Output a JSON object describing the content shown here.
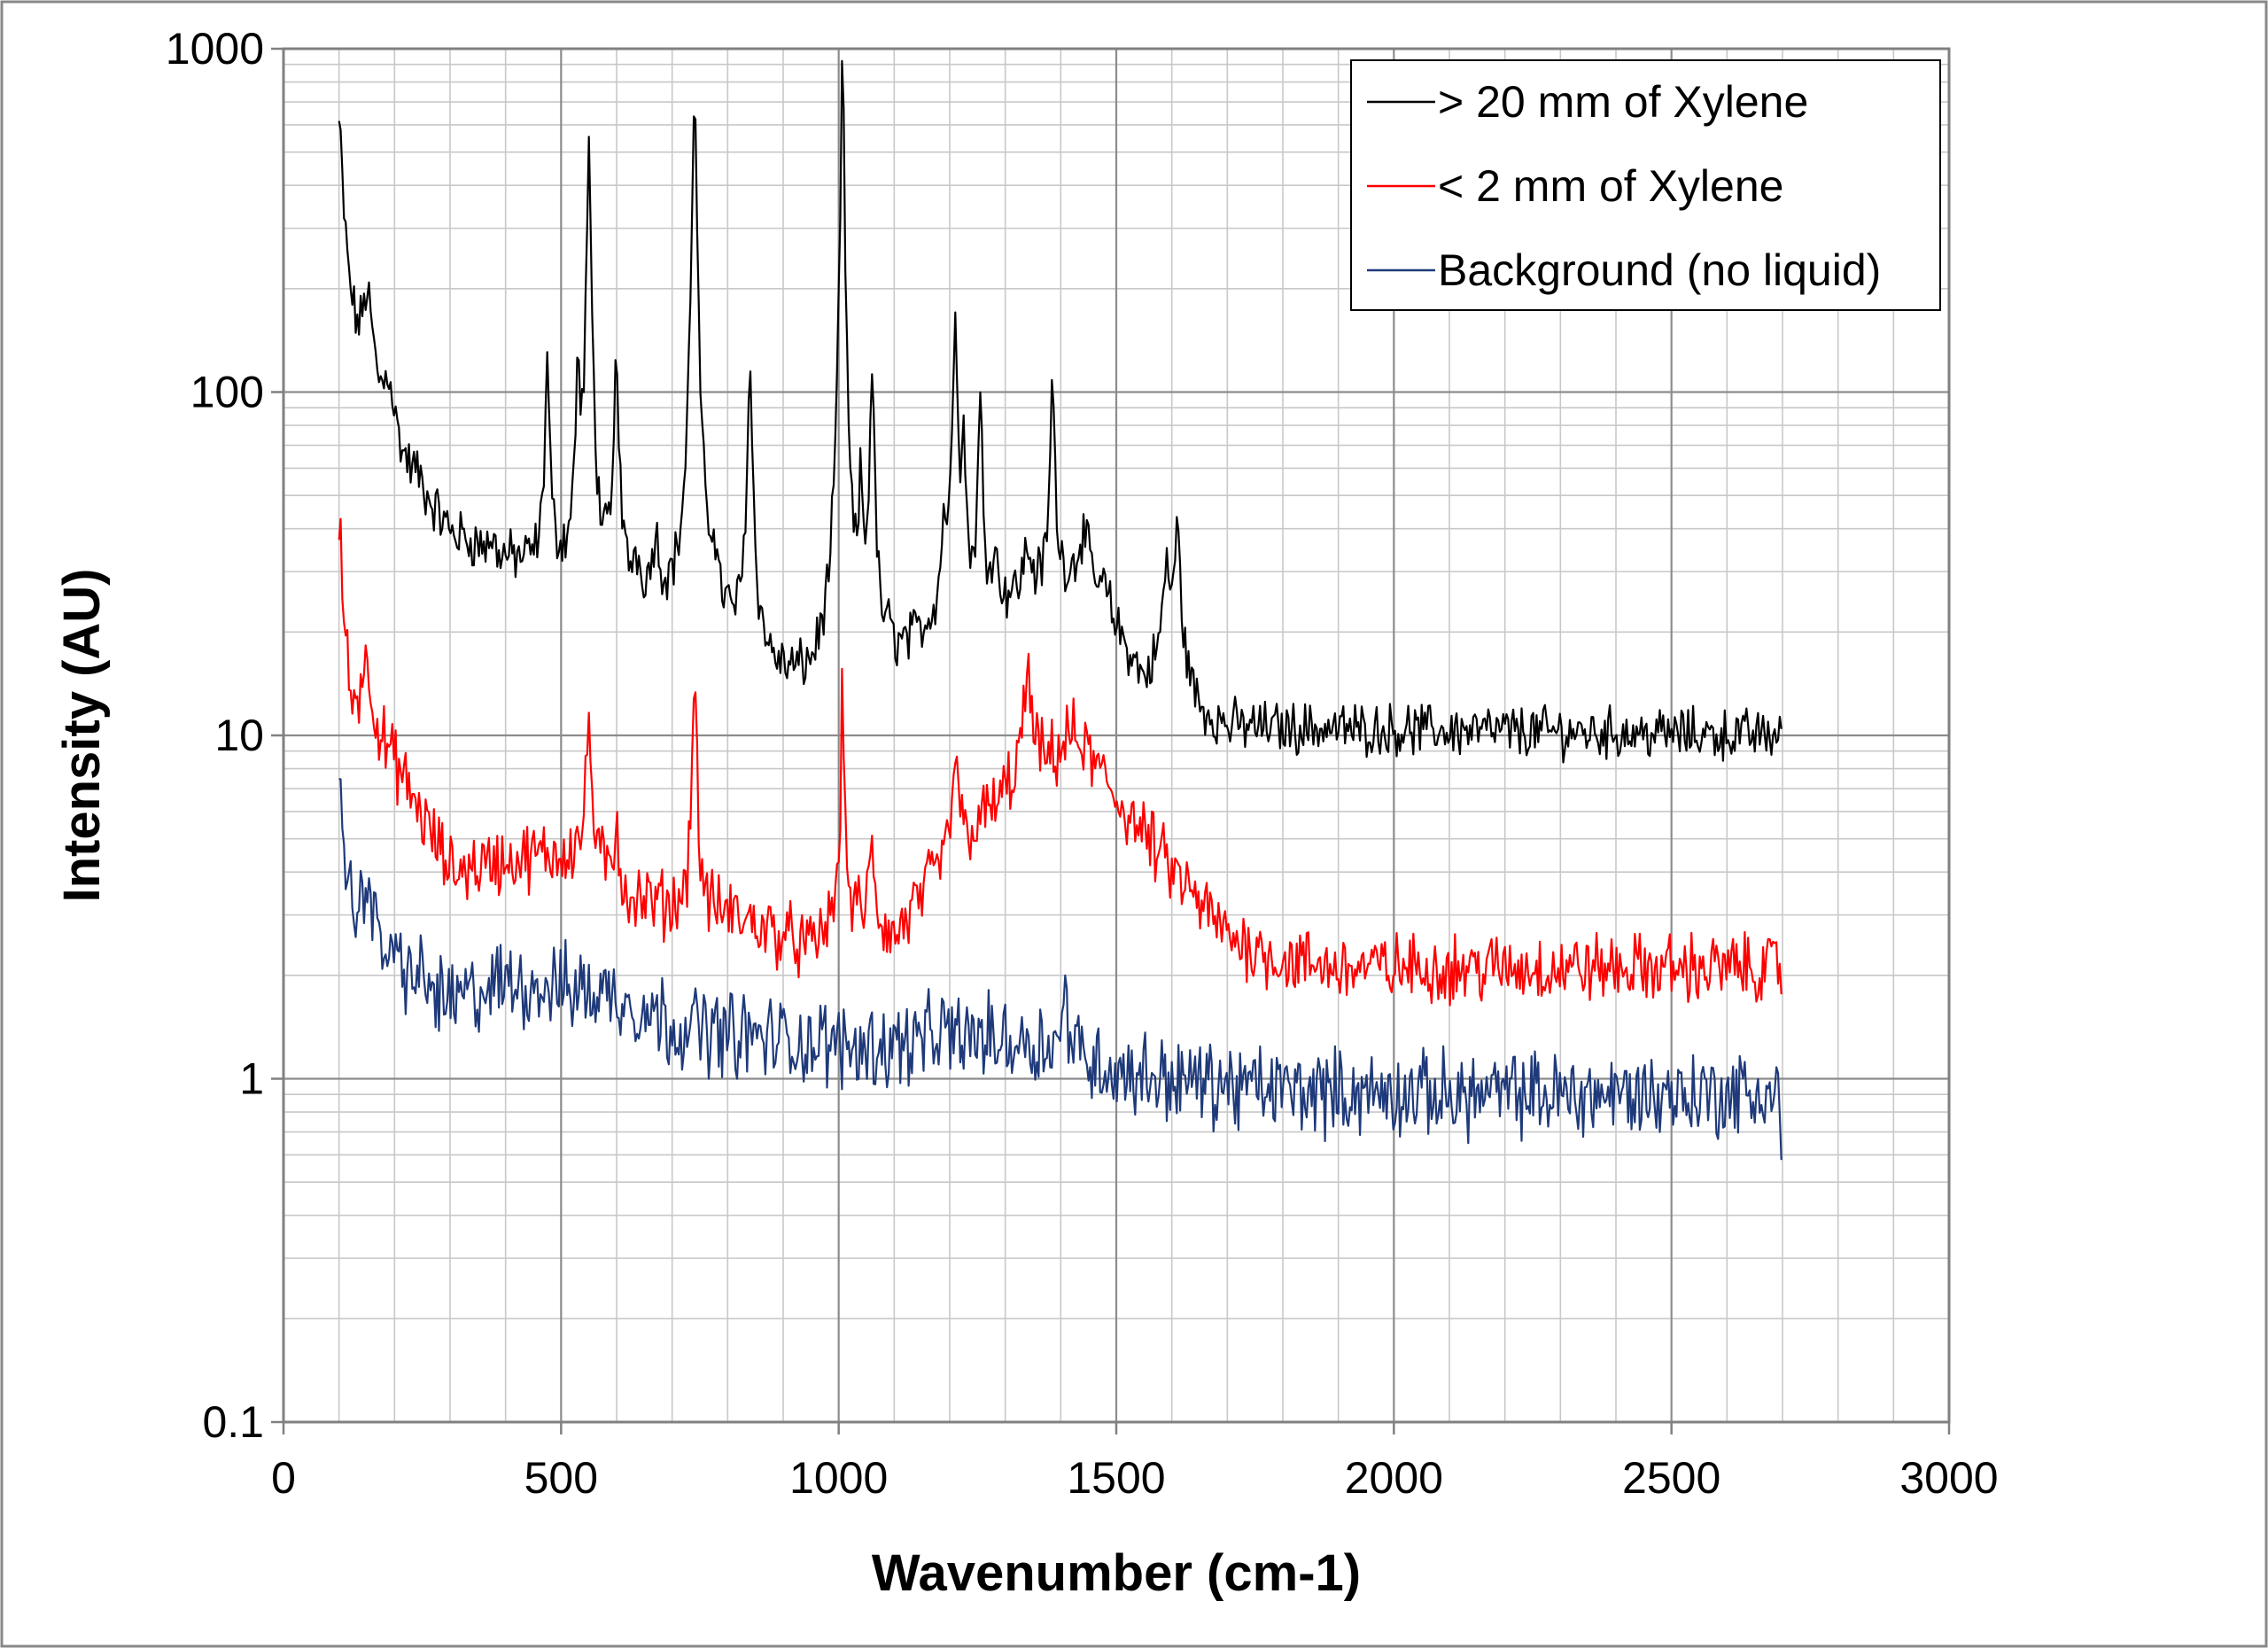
{
  "chart_data": {
    "type": "line",
    "title": "",
    "xlabel": "Wavenumber (cm-1)",
    "ylabel": "Intensity (AU)",
    "xlim": [
      0,
      3000
    ],
    "ylim": [
      0.1,
      1000
    ],
    "yscale": "log",
    "grid": true,
    "legend_position": "top-right",
    "x_ticks": [
      "0",
      "500",
      "1000",
      "1500",
      "2000",
      "2500",
      "3000"
    ],
    "y_ticks": [
      "0.1",
      "1",
      "10",
      "100",
      "1000"
    ],
    "series": [
      {
        "name": "> 20 mm of Xylene",
        "color": "#000000",
        "baseline": [
          [
            100,
            300
          ],
          [
            140,
            95
          ],
          [
            200,
            62
          ],
          [
            300,
            38
          ],
          [
            400,
            32
          ],
          [
            500,
            30
          ],
          [
            600,
            26
          ],
          [
            700,
            23
          ],
          [
            800,
            19
          ],
          [
            900,
            14
          ],
          [
            950,
            13.5
          ],
          [
            1000,
            17
          ],
          [
            1100,
            16
          ],
          [
            1200,
            22
          ],
          [
            1300,
            24
          ],
          [
            1400,
            28
          ],
          [
            1450,
            28
          ],
          [
            1500,
            20
          ],
          [
            1550,
            14
          ],
          [
            1600,
            18
          ],
          [
            1650,
            11.5
          ],
          [
            1700,
            10.5
          ],
          [
            2700,
            10
          ]
        ],
        "peaks": [
          [
            100,
            600,
            6
          ],
          [
            150,
            190,
            12
          ],
          [
            190,
            105,
            10
          ],
          [
            240,
            55,
            10
          ],
          [
            375,
            36,
            6
          ],
          [
            475,
            122,
            4
          ],
          [
            530,
            110,
            4
          ],
          [
            550,
            470,
            4
          ],
          [
            600,
            127,
            4
          ],
          [
            635,
            31,
            6
          ],
          [
            670,
            36,
            6
          ],
          [
            740,
            710,
            4
          ],
          [
            775,
            32,
            6
          ],
          [
            840,
            110,
            5
          ],
          [
            1000,
            45,
            4
          ],
          [
            1007,
            870,
            3
          ],
          [
            1040,
            48,
            4
          ],
          [
            1060,
            117,
            4
          ],
          [
            1090,
            18,
            6
          ],
          [
            1190,
            40,
            5
          ],
          [
            1210,
            178,
            4
          ],
          [
            1225,
            68,
            4
          ],
          [
            1255,
            90,
            4
          ],
          [
            1280,
            33,
            6
          ],
          [
            1340,
            34,
            8
          ],
          [
            1385,
            105,
            4
          ],
          [
            1440,
            38,
            10
          ],
          [
            1480,
            26,
            8
          ],
          [
            1590,
            30,
            6
          ],
          [
            1610,
            38,
            6
          ]
        ],
        "noise": 0.06
      },
      {
        "name": "< 2 mm of Xylene",
        "color": "#ff0000",
        "baseline": [
          [
            100,
            20
          ],
          [
            120,
            11
          ],
          [
            200,
            8
          ],
          [
            300,
            4
          ],
          [
            400,
            4.3
          ],
          [
            500,
            4.5
          ],
          [
            550,
            4.8
          ],
          [
            600,
            3.4
          ],
          [
            700,
            3.1
          ],
          [
            800,
            3.0
          ],
          [
            900,
            2.6
          ],
          [
            950,
            2.35
          ],
          [
            1000,
            3.0
          ],
          [
            1050,
            2.9
          ],
          [
            1100,
            2.5
          ],
          [
            1200,
            4.5
          ],
          [
            1300,
            6.5
          ],
          [
            1400,
            8.5
          ],
          [
            1450,
            8.5
          ],
          [
            1500,
            6.5
          ],
          [
            1600,
            4.0
          ],
          [
            1700,
            2.6
          ],
          [
            1800,
            2.2
          ],
          [
            1900,
            2.1
          ],
          [
            2700,
            2.1
          ]
        ],
        "peaks": [
          [
            100,
            42,
            6
          ],
          [
            150,
            16,
            12
          ],
          [
            550,
            11.5,
            4
          ],
          [
            600,
            6,
            4
          ],
          [
            740,
            15,
            4
          ],
          [
            1007,
            13,
            3
          ],
          [
            1060,
            4.6,
            5
          ],
          [
            1210,
            9,
            5
          ],
          [
            1340,
            14,
            10
          ],
          [
            1420,
            10,
            15
          ]
        ],
        "noise": 0.08
      },
      {
        "name": "Background (no liquid)",
        "color": "#1f3a7a",
        "baseline": [
          [
            100,
            5
          ],
          [
            120,
            3.0
          ],
          [
            150,
            2.6
          ],
          [
            200,
            2.2
          ],
          [
            300,
            1.65
          ],
          [
            400,
            1.9
          ],
          [
            500,
            1.85
          ],
          [
            600,
            1.75
          ],
          [
            700,
            1.45
          ],
          [
            800,
            1.35
          ],
          [
            900,
            1.3
          ],
          [
            1000,
            1.25
          ],
          [
            1100,
            1.25
          ],
          [
            1200,
            1.35
          ],
          [
            1300,
            1.3
          ],
          [
            1400,
            1.25
          ],
          [
            1500,
            1.05
          ],
          [
            1600,
            1.0
          ],
          [
            1700,
            0.95
          ],
          [
            1800,
            0.93
          ],
          [
            2000,
            0.9
          ],
          [
            2700,
            0.9
          ]
        ],
        "peaks": [
          [
            100,
            8,
            6
          ],
          [
            150,
            4.3,
            6
          ],
          [
            1410,
            1.7,
            6
          ]
        ],
        "noise": 0.1,
        "end_value": 0.58
      }
    ]
  }
}
